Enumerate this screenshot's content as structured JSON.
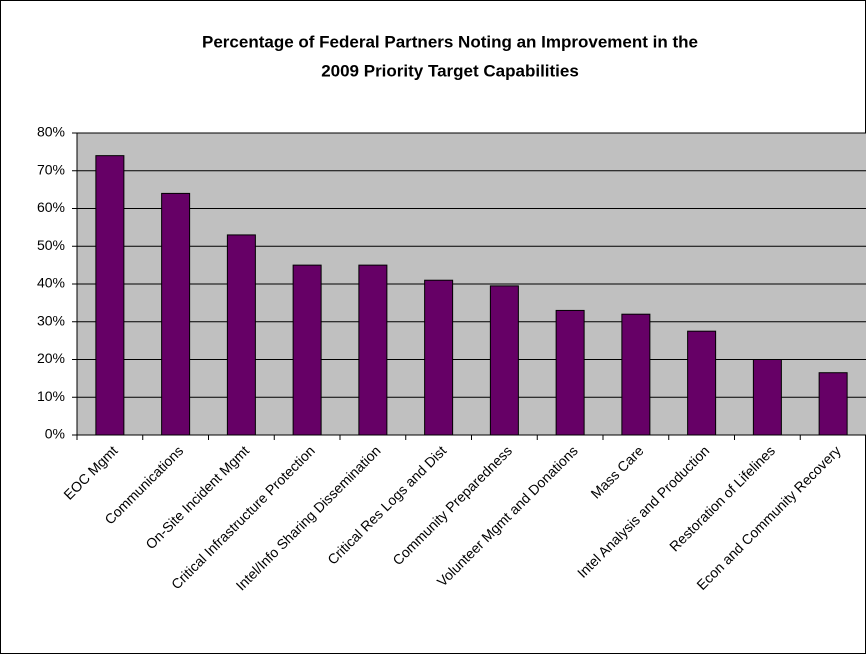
{
  "chart_data": {
    "type": "bar",
    "title": "Percentage of Federal Partners Noting an Improvement in the",
    "subtitle": "2009 Priority Target Capabilities",
    "categories": [
      "EOC Mgmt",
      "Communications",
      "On-Site Incident Mgmt",
      "Critical Infrastructure Protection",
      "Intel/Info Sharing Dissemination",
      "Critical Res Logs and Dist",
      "Community Preparedness",
      "Volunteer Mgmt and Donations",
      "Mass Care",
      "Intel Analysis and Production",
      "Restoration of Lifelines",
      "Econ and Community Recovery"
    ],
    "values": [
      74,
      64,
      53,
      45,
      45,
      41,
      39.5,
      33,
      32,
      27.5,
      20,
      16.5
    ],
    "color": "#660066",
    "ylim": [
      0,
      80
    ],
    "yticks": [
      {
        "value": 0,
        "label": "0%"
      },
      {
        "value": 10,
        "label": "10%"
      },
      {
        "value": 20,
        "label": "20%"
      },
      {
        "value": 30,
        "label": "30%"
      },
      {
        "value": 40,
        "label": "40%"
      },
      {
        "value": 50,
        "label": "50%"
      },
      {
        "value": 60,
        "label": "60%"
      },
      {
        "value": 70,
        "label": "70%"
      },
      {
        "value": 80,
        "label": "80%"
      }
    ],
    "grid": true
  }
}
